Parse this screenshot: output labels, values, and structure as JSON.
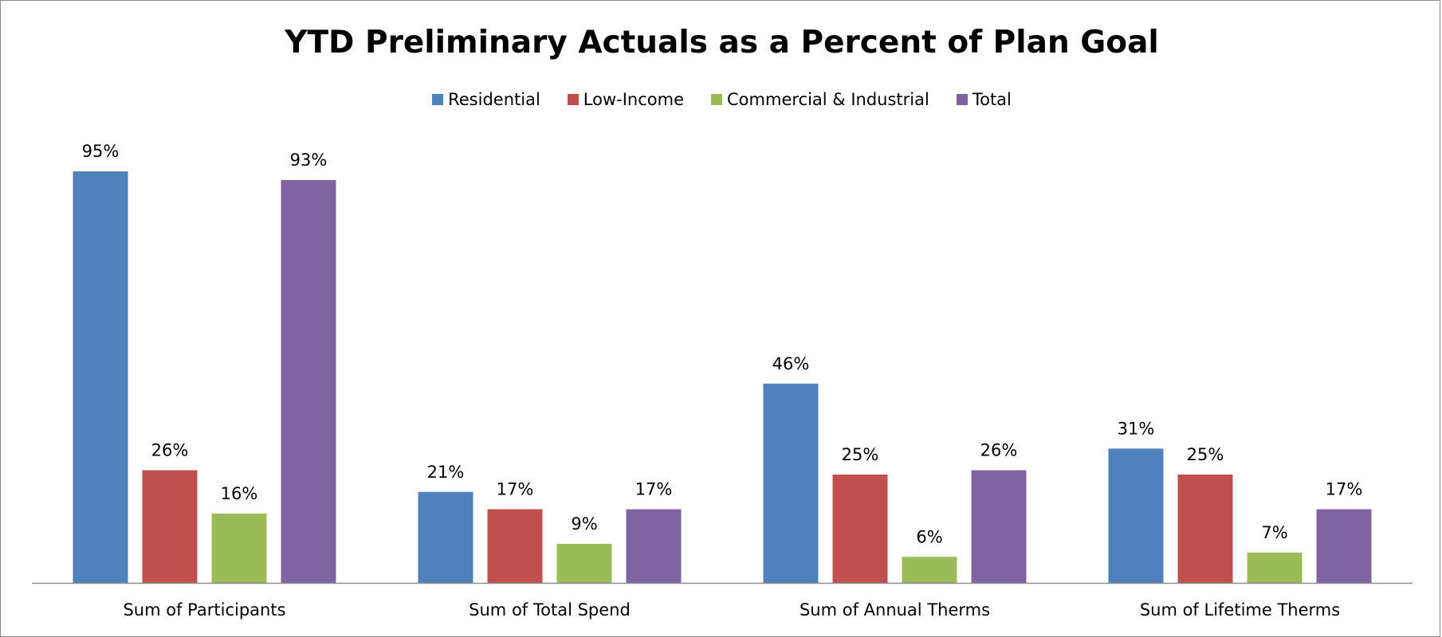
{
  "chart_data": {
    "type": "bar",
    "title": "YTD Preliminary Actuals as a Percent of Plan Goal",
    "categories": [
      "Sum of Participants",
      "Sum of Total Spend",
      "Sum of Annual Therms",
      "Sum of Lifetime Therms"
    ],
    "series": [
      {
        "name": "Residential",
        "color": "#4F81BD",
        "values": [
          95,
          21,
          46,
          31
        ],
        "labels": [
          "95%",
          "21%",
          "46%",
          "31%"
        ]
      },
      {
        "name": "Low-Income",
        "color": "#C0504D",
        "values": [
          26,
          17,
          25,
          25
        ],
        "labels": [
          "26%",
          "17%",
          "25%",
          "25%"
        ]
      },
      {
        "name": "Commercial & Industrial",
        "color": "#9BBB59",
        "values": [
          16,
          9,
          6,
          7
        ],
        "labels": [
          "16%",
          "9%",
          "6%",
          "7%"
        ]
      },
      {
        "name": "Total",
        "color": "#8064A2",
        "values": [
          93,
          17,
          26,
          17
        ],
        "labels": [
          "93%",
          "17%",
          "26%",
          "17%"
        ]
      }
    ],
    "unit": "%",
    "legend_position": "top",
    "grid": false,
    "xlabel": "",
    "ylabel": ""
  }
}
